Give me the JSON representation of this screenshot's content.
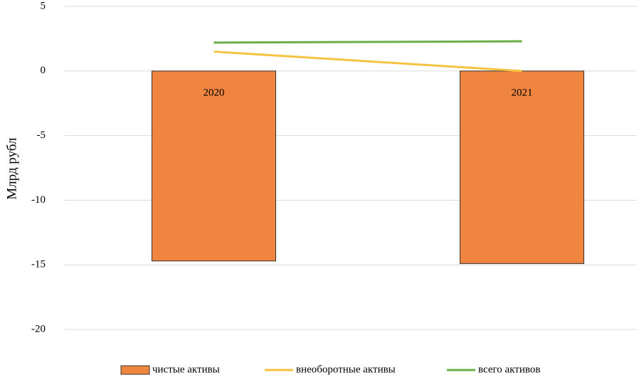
{
  "chart_data": {
    "type": "combo",
    "y_label": "Млрд рубл",
    "categories": [
      "2020",
      "2021"
    ],
    "series": [
      {
        "name": "чистые активы",
        "type": "bar",
        "color": "#f08540",
        "values": [
          -14.7,
          -14.9
        ]
      },
      {
        "name": "внеоборотные активы",
        "type": "line",
        "color": "#f5c342",
        "values": [
          1.5,
          0
        ]
      },
      {
        "name": "всего активов",
        "type": "line",
        "color": "#6aaf48",
        "values": [
          2.2,
          2.3
        ]
      }
    ],
    "ylim": [
      -20,
      5
    ],
    "yticks": [
      -20,
      -15,
      -10,
      -5,
      0,
      5
    ],
    "grid": true,
    "legend": "bottom"
  }
}
